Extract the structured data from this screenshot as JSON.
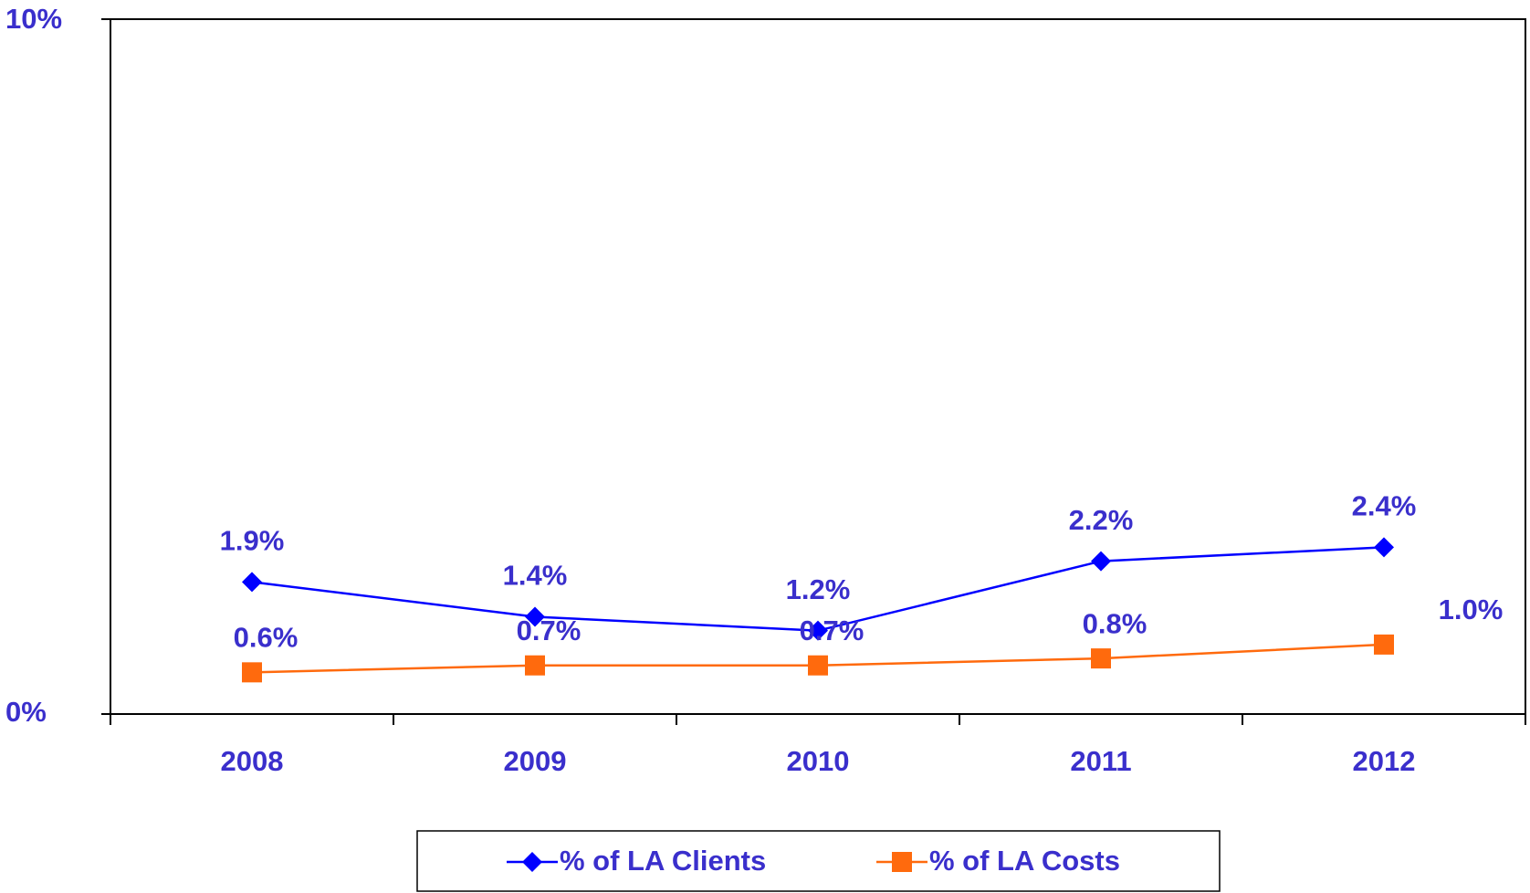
{
  "chart_data": {
    "type": "line",
    "categories": [
      "2008",
      "2009",
      "2010",
      "2011",
      "2012"
    ],
    "series": [
      {
        "name": "% of LA Clients",
        "color": "#0000ff",
        "marker": "diamond",
        "values": [
          1.9,
          1.4,
          1.2,
          2.2,
          2.4
        ],
        "value_labels": [
          "1.9%",
          "1.4%",
          "1.2%",
          "2.2%",
          "2.4%"
        ]
      },
      {
        "name": "% of LA Costs",
        "color": "#ff6a0d",
        "marker": "square",
        "values": [
          0.6,
          0.7,
          0.7,
          0.8,
          1.0
        ],
        "value_labels": [
          "0.6%",
          "0.7%",
          "0.7%",
          "0.8%",
          "1.0%"
        ]
      }
    ],
    "ylim": [
      0,
      10
    ],
    "yticks": [
      {
        "value": 0,
        "label": "0%"
      },
      {
        "value": 10,
        "label": "10%"
      }
    ],
    "grid": false,
    "legend": "bottom"
  }
}
